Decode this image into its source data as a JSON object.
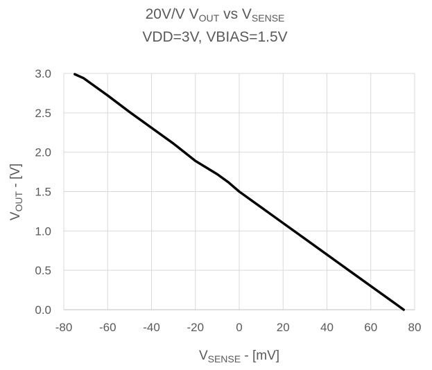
{
  "chart_data": {
    "type": "line",
    "title": {
      "line1_parts": [
        {
          "text": "20V/V V",
          "sub": false
        },
        {
          "text": "OUT",
          "sub": true
        },
        {
          "text": " vs V",
          "sub": false
        },
        {
          "text": "SENSE",
          "sub": true
        }
      ],
      "line2": "VDD=3V, VBIAS=1.5V"
    },
    "xlabel": {
      "parts": [
        {
          "text": "V",
          "sub": false
        },
        {
          "text": "SENSE",
          "sub": true
        },
        {
          "text": " - [mV]",
          "sub": false
        }
      ]
    },
    "ylabel": {
      "parts": [
        {
          "text": "V",
          "sub": false
        },
        {
          "text": "OUT",
          "sub": true
        },
        {
          "text": " - [V]",
          "sub": false
        }
      ]
    },
    "xlim": [
      -80,
      80
    ],
    "ylim": [
      0,
      3.0
    ],
    "xticks": [
      -80,
      -60,
      -40,
      -20,
      0,
      20,
      40,
      60,
      80
    ],
    "xtick_labels": [
      "-80",
      "-60",
      "-40",
      "-20",
      "0",
      "20",
      "40",
      "60",
      "80"
    ],
    "yticks": [
      0,
      0.5,
      1.0,
      1.5,
      2.0,
      2.5,
      3.0
    ],
    "ytick_labels": [
      "0.0",
      "0.5",
      "1.0",
      "1.5",
      "2.0",
      "2.5",
      "3.0"
    ],
    "grid": true,
    "series": [
      {
        "color": "#000000",
        "x": [
          -75,
          -71,
          -60,
          -50,
          -40,
          -30,
          -20,
          -10,
          -5,
          0,
          10,
          20,
          30,
          40,
          50,
          60,
          70,
          75
        ],
        "y": [
          2.99,
          2.94,
          2.72,
          2.51,
          2.31,
          2.11,
          1.89,
          1.72,
          1.62,
          1.5,
          1.3,
          1.1,
          0.9,
          0.7,
          0.5,
          0.3,
          0.1,
          0.0
        ]
      }
    ]
  }
}
